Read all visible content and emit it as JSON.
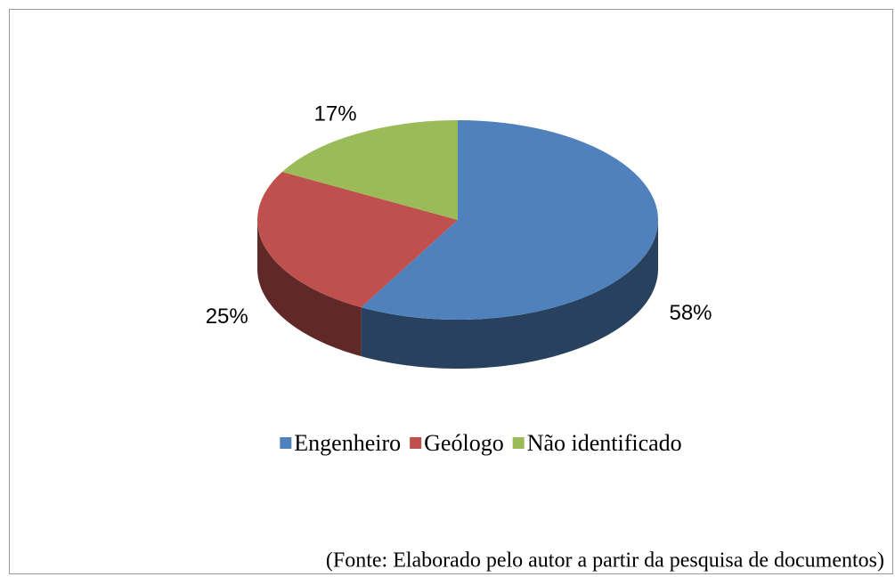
{
  "chart_data": {
    "type": "pie",
    "categories": [
      "Engenheiro",
      "Geólogo",
      "Não identificado"
    ],
    "values": [
      58,
      25,
      17
    ],
    "value_labels": [
      "58%",
      "25%",
      "17%"
    ],
    "colors": [
      "#4f81bd",
      "#c0504d",
      "#9bbb59"
    ],
    "legend": "bottom",
    "note": "(Fonte: Elaborado pelo autor a partir da pesquisa de documentos)"
  }
}
